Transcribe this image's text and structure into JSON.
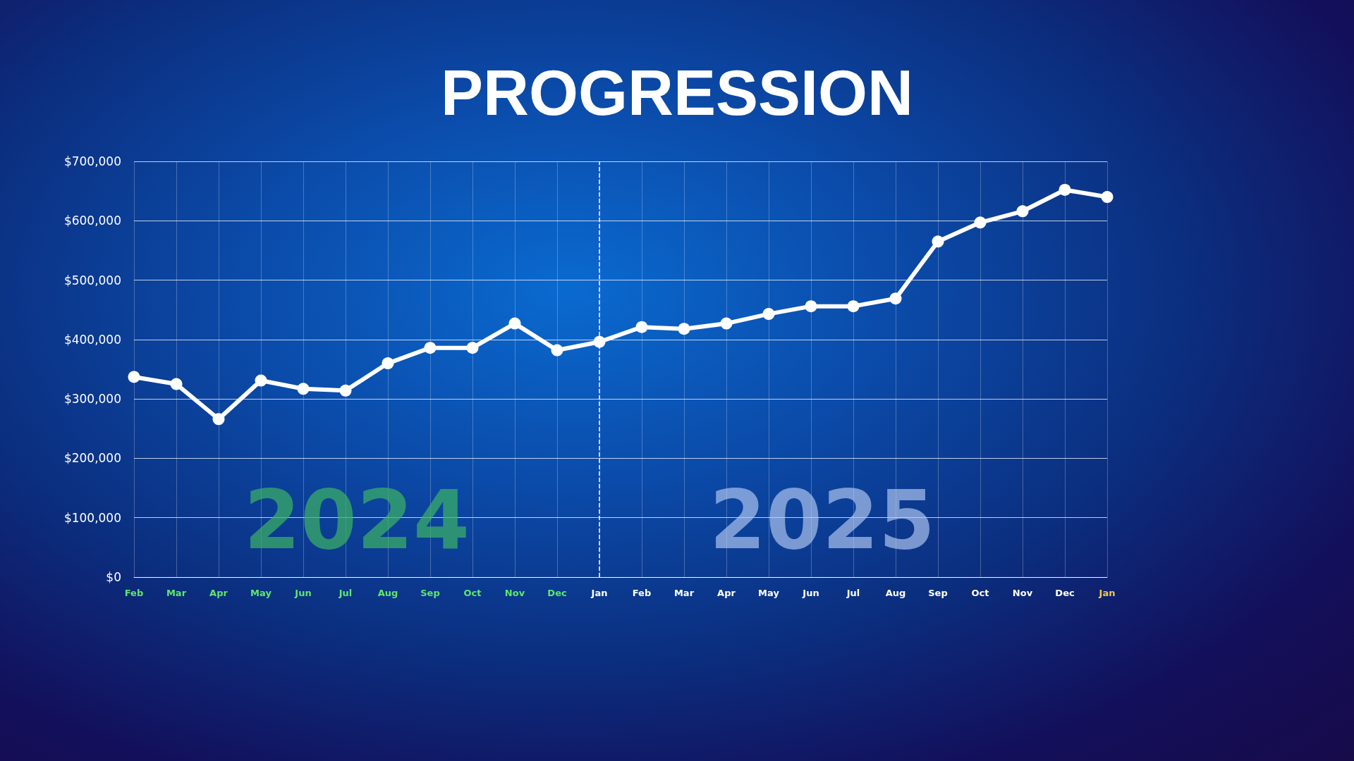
{
  "chart_data": {
    "type": "line",
    "title": "PROGRESSION",
    "categories": [
      "Feb",
      "Mar",
      "Apr",
      "May",
      "Jun",
      "Jul",
      "Aug",
      "Sep",
      "Oct",
      "Nov",
      "Dec",
      "Jan",
      "Feb",
      "Mar",
      "Apr",
      "May",
      "Jun",
      "Jul",
      "Aug",
      "Sep",
      "Oct",
      "Nov",
      "Dec",
      "Jan"
    ],
    "series": [
      {
        "color": "#ffffff",
        "values": [
          337000,
          325000,
          266000,
          331000,
          317000,
          314000,
          360000,
          386000,
          386000,
          427000,
          382000,
          396000,
          421000,
          418000,
          427000,
          443000,
          456000,
          456000,
          469000,
          565000,
          597000,
          616000,
          652000,
          640000
        ]
      }
    ],
    "ylim": [
      0,
      700000
    ],
    "yticks": [
      {
        "value": 0,
        "label": "$0"
      },
      {
        "value": 100000,
        "label": "$100,000"
      },
      {
        "value": 200000,
        "label": "$200,000"
      },
      {
        "value": 300000,
        "label": "$300,000"
      },
      {
        "value": 400000,
        "label": "$400,000"
      },
      {
        "value": 500000,
        "label": "$500,000"
      },
      {
        "value": 600000,
        "label": "$600,000"
      },
      {
        "value": 700000,
        "label": "$700,000"
      }
    ],
    "grid": true,
    "marker": "circle",
    "line_style": "solid",
    "ref_lines": [
      {
        "axis": "x",
        "value": "Jan",
        "color": "#ffffff",
        "line_style": "dashed"
      }
    ],
    "annotations": [
      "2024",
      "2025"
    ]
  }
}
